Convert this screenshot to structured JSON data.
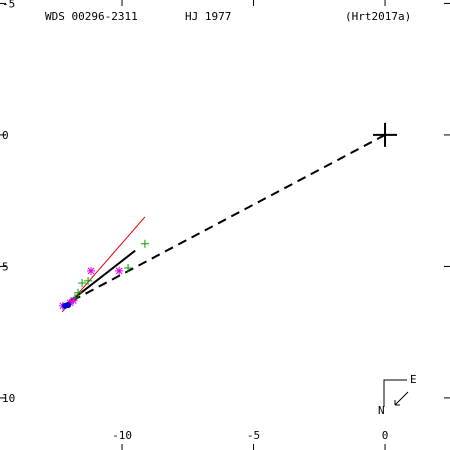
{
  "chart_data": {
    "type": "scatter",
    "title": "WDS 00296-2311",
    "subtitle": "HJ 1977",
    "reference": "(Hrt2017a)",
    "compass": {
      "east": "E",
      "north": "N"
    },
    "xlim": [
      -14.64,
      2.47
    ],
    "ylim": [
      -5.13,
      11.98
    ],
    "xticks": [
      -10,
      -5,
      0
    ],
    "yticks": [
      -5,
      0,
      5,
      10
    ],
    "primary": {
      "x": 0,
      "y": 0,
      "color": "#000000"
    },
    "series": [
      {
        "marker": "plus",
        "color": "#00a000",
        "x": [
          -9.13,
          -9.77,
          -11.52,
          -11.29,
          -11.67,
          -11.79,
          -12.0
        ],
        "y": [
          4.14,
          5.06,
          5.63,
          5.55,
          6.0,
          6.2,
          6.4
        ]
      },
      {
        "marker": "star",
        "color": "#e000e0",
        "x": [
          -11.18,
          -10.11,
          -11.98,
          -12.25,
          -11.85
        ],
        "y": [
          5.17,
          5.17,
          6.38,
          6.5,
          6.3
        ]
      },
      {
        "marker": "dot",
        "color": "#0000e0",
        "x": [
          -12.05,
          -12.17
        ],
        "y": [
          6.47,
          6.5
        ]
      }
    ],
    "lines": [
      {
        "color": "#000000",
        "dash": true,
        "x": [
          0,
          -11.98
        ],
        "y": [
          0,
          6.35
        ]
      },
      {
        "color": "#000000",
        "dash": false,
        "x": [
          -12.2,
          -9.5
        ],
        "y": [
          6.5,
          4.4
        ]
      },
      {
        "color": "#e00000",
        "dash": false,
        "x": [
          -12.28,
          -9.13
        ],
        "y": [
          6.73,
          3.12
        ]
      }
    ]
  }
}
